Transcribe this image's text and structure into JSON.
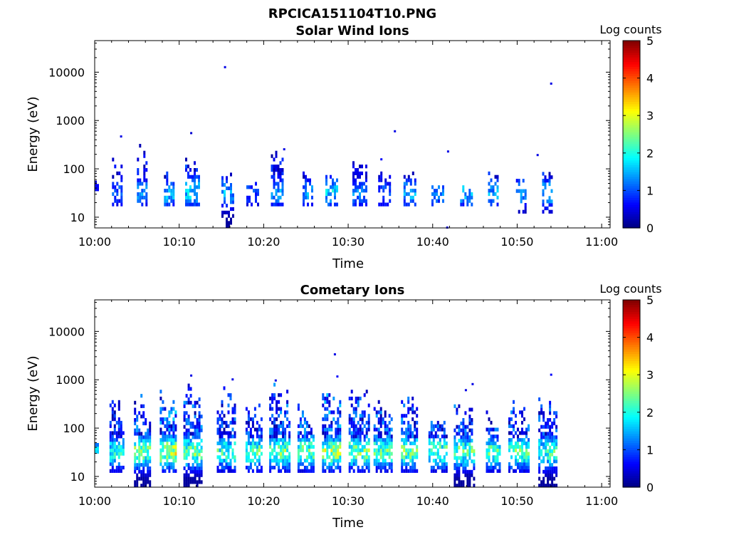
{
  "figure": {
    "title": "RPCICA151104T10.PNG"
  },
  "colors": {
    "colormap": [
      "#00007f",
      "#0000ff",
      "#007fff",
      "#00ffff",
      "#7fff7f",
      "#ffff00",
      "#ff7f00",
      "#ff0000",
      "#7f0000"
    ],
    "axes": "#000000",
    "background": "#ffffff"
  },
  "chart_data": [
    {
      "type": "heatmap",
      "title": "Solar Wind Ions",
      "xlabel": "Time",
      "ylabel": "Energy (eV)",
      "x_ticks": [
        "10:00",
        "10:10",
        "10:20",
        "10:30",
        "10:40",
        "10:50",
        "11:00"
      ],
      "x_range_minutes": [
        0,
        61
      ],
      "y_scale": "log",
      "y_ticks": [
        10,
        100,
        1000,
        10000
      ],
      "ylim": [
        6,
        45000
      ],
      "colorbar": {
        "label": "Log counts",
        "range": [
          0,
          5
        ],
        "ticks": [
          0,
          1,
          2,
          3,
          4,
          5
        ]
      },
      "bursts": [
        {
          "t": 0.2,
          "w": 0.4,
          "lo": 35,
          "hi": 50,
          "peak": 0.8,
          "density": 0.9
        },
        {
          "t": 2.7,
          "w": 1.3,
          "lo": 17,
          "hi": 150,
          "peak": 1.3,
          "density": 0.55
        },
        {
          "t": 5.6,
          "w": 1.2,
          "lo": 17,
          "hi": 330,
          "peak": 1.6,
          "density": 0.6
        },
        {
          "t": 8.8,
          "w": 1.2,
          "lo": 17,
          "hi": 90,
          "peak": 1.9,
          "density": 0.5
        },
        {
          "t": 11.6,
          "w": 1.8,
          "lo": 17,
          "hi": 200,
          "peak": 2.1,
          "density": 0.6
        },
        {
          "t": 15.7,
          "w": 1.4,
          "lo": 6,
          "hi": 110,
          "peak": 1.8,
          "density": 0.5
        },
        {
          "t": 18.7,
          "w": 1.5,
          "lo": 17,
          "hi": 55,
          "peak": 1.2,
          "density": 0.5
        },
        {
          "t": 21.6,
          "w": 1.5,
          "lo": 17,
          "hi": 300,
          "peak": 1.7,
          "density": 0.6
        },
        {
          "t": 25.2,
          "w": 1.2,
          "lo": 17,
          "hi": 80,
          "peak": 1.7,
          "density": 0.5
        },
        {
          "t": 28.1,
          "w": 1.6,
          "lo": 17,
          "hi": 70,
          "peak": 2.1,
          "density": 0.5
        },
        {
          "t": 31.4,
          "w": 1.8,
          "lo": 17,
          "hi": 200,
          "peak": 1.6,
          "density": 0.55
        },
        {
          "t": 34.3,
          "w": 1.5,
          "lo": 17,
          "hi": 85,
          "peak": 1.3,
          "density": 0.5
        },
        {
          "t": 37.3,
          "w": 1.5,
          "lo": 17,
          "hi": 90,
          "peak": 1.8,
          "density": 0.5
        },
        {
          "t": 40.6,
          "w": 1.5,
          "lo": 17,
          "hi": 50,
          "peak": 1.6,
          "density": 0.55
        },
        {
          "t": 44.0,
          "w": 1.5,
          "lo": 17,
          "hi": 45,
          "peak": 1.9,
          "density": 0.55
        },
        {
          "t": 47.2,
          "w": 1.3,
          "lo": 17,
          "hi": 85,
          "peak": 1.8,
          "density": 0.5
        },
        {
          "t": 50.5,
          "w": 1.3,
          "lo": 12,
          "hi": 70,
          "peak": 1.8,
          "density": 0.5
        },
        {
          "t": 53.6,
          "w": 1.3,
          "lo": 12,
          "hi": 90,
          "peak": 2.0,
          "density": 0.5
        }
      ],
      "specks": [
        {
          "t": 3.0,
          "e": 460,
          "v": 0.5
        },
        {
          "t": 11.3,
          "e": 540,
          "v": 0.4
        },
        {
          "t": 15.3,
          "e": 12500,
          "v": 0.5
        },
        {
          "t": 22.3,
          "e": 250,
          "v": 0.5
        },
        {
          "t": 33.8,
          "e": 155,
          "v": 0.6
        },
        {
          "t": 35.4,
          "e": 590,
          "v": 0.5
        },
        {
          "t": 41.7,
          "e": 225,
          "v": 0.5
        },
        {
          "t": 52.3,
          "e": 190,
          "v": 0.5
        },
        {
          "t": 53.9,
          "e": 5700,
          "v": 0.5
        },
        {
          "t": 41.6,
          "e": 6,
          "v": 0.5
        }
      ]
    },
    {
      "type": "heatmap",
      "title": "Cometary Ions",
      "xlabel": "Time",
      "ylabel": "Energy (eV)",
      "x_ticks": [
        "10:00",
        "10:10",
        "10:20",
        "10:30",
        "10:40",
        "10:50",
        "11:00"
      ],
      "x_range_minutes": [
        0,
        61
      ],
      "y_scale": "log",
      "y_ticks": [
        10,
        100,
        1000,
        10000
      ],
      "ylim": [
        6,
        45000
      ],
      "colorbar": {
        "label": "Log counts",
        "range": [
          0,
          5
        ],
        "ticks": [
          0,
          1,
          2,
          3,
          4,
          5
        ]
      },
      "bursts": [
        {
          "t": 0.2,
          "w": 0.4,
          "lo": 30,
          "hi": 45,
          "peak": 2.0,
          "density": 1.0
        },
        {
          "t": 2.6,
          "w": 1.7,
          "lo": 12,
          "hi": 500,
          "peak": 2.4,
          "density": 0.75
        },
        {
          "t": 5.7,
          "w": 2.1,
          "lo": 6,
          "hi": 500,
          "peak": 3.0,
          "density": 0.75
        },
        {
          "t": 8.7,
          "w": 2.0,
          "lo": 12,
          "hi": 600,
          "peak": 3.5,
          "density": 0.75
        },
        {
          "t": 11.7,
          "w": 2.4,
          "lo": 6,
          "hi": 1150,
          "peak": 3.0,
          "density": 0.75
        },
        {
          "t": 15.6,
          "w": 2.3,
          "lo": 12,
          "hi": 950,
          "peak": 2.7,
          "density": 0.7
        },
        {
          "t": 18.9,
          "w": 2.1,
          "lo": 12,
          "hi": 500,
          "peak": 2.9,
          "density": 0.7
        },
        {
          "t": 21.9,
          "w": 2.5,
          "lo": 12,
          "hi": 800,
          "peak": 3.0,
          "density": 0.75
        },
        {
          "t": 25.0,
          "w": 2.0,
          "lo": 12,
          "hi": 350,
          "peak": 3.0,
          "density": 0.7
        },
        {
          "t": 28.1,
          "w": 2.4,
          "lo": 12,
          "hi": 700,
          "peak": 3.3,
          "density": 0.75
        },
        {
          "t": 31.3,
          "w": 2.5,
          "lo": 12,
          "hi": 800,
          "peak": 3.0,
          "density": 0.75
        },
        {
          "t": 34.2,
          "w": 2.4,
          "lo": 12,
          "hi": 500,
          "peak": 2.9,
          "density": 0.75
        },
        {
          "t": 37.3,
          "w": 2.1,
          "lo": 12,
          "hi": 550,
          "peak": 3.0,
          "density": 0.75
        },
        {
          "t": 40.6,
          "w": 2.2,
          "lo": 12,
          "hi": 250,
          "peak": 2.9,
          "density": 0.7
        },
        {
          "t": 43.8,
          "w": 2.6,
          "lo": 6,
          "hi": 350,
          "peak": 2.9,
          "density": 0.7
        },
        {
          "t": 47.2,
          "w": 1.8,
          "lo": 12,
          "hi": 200,
          "peak": 2.8,
          "density": 0.7
        },
        {
          "t": 50.2,
          "w": 2.5,
          "lo": 12,
          "hi": 350,
          "peak": 2.9,
          "density": 0.7
        },
        {
          "t": 53.7,
          "w": 2.4,
          "lo": 6,
          "hi": 450,
          "peak": 2.7,
          "density": 0.7
        }
      ],
      "specks": [
        {
          "t": 28.3,
          "e": 3300,
          "v": 0.5
        },
        {
          "t": 28.6,
          "e": 1150,
          "v": 0.6
        },
        {
          "t": 43.8,
          "e": 600,
          "v": 0.5
        },
        {
          "t": 44.6,
          "e": 800,
          "v": 0.5
        },
        {
          "t": 53.9,
          "e": 1250,
          "v": 0.6
        },
        {
          "t": 11.3,
          "e": 1200,
          "v": 0.5
        },
        {
          "t": 16.2,
          "e": 1000,
          "v": 0.5
        },
        {
          "t": 21.3,
          "e": 950,
          "v": 0.5
        }
      ]
    }
  ]
}
